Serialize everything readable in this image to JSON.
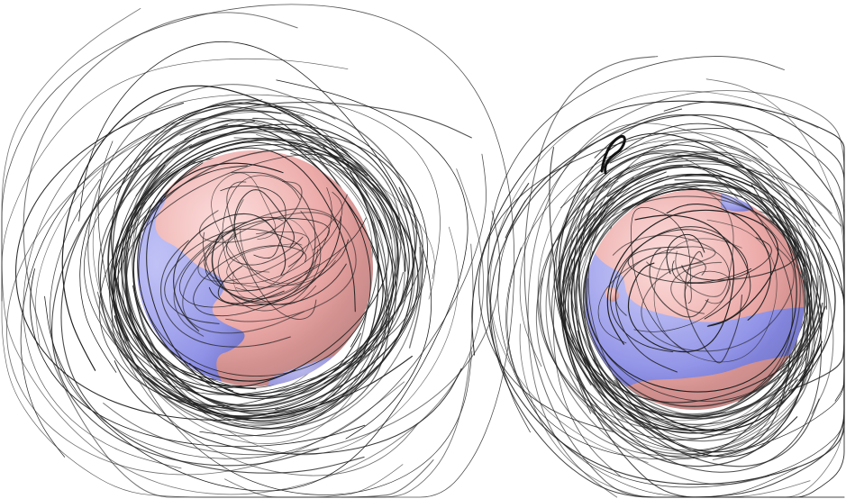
{
  "image": {
    "background": "#ffffff",
    "colors": {
      "positive_region": "#e9a7a5",
      "negative_region": "#8c8ee8",
      "field_lines": "#1f1f1f"
    },
    "panels": [
      {
        "id": "left",
        "sphere": "sphere-left",
        "field_line_count": 95
      },
      {
        "id": "right",
        "sphere": "sphere-right",
        "field_line_count": 90
      }
    ]
  }
}
